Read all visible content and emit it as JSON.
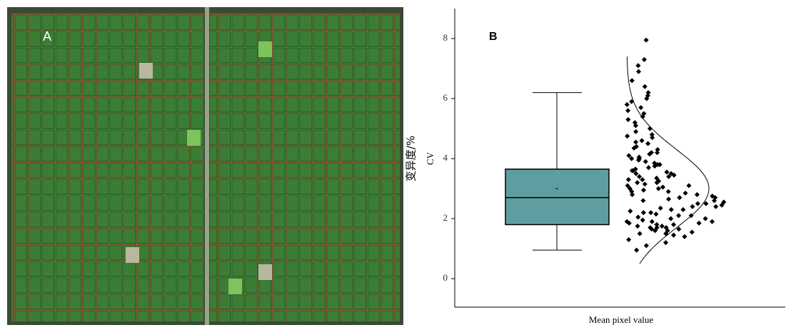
{
  "image_panel": {
    "label": "A"
  },
  "chart_data": {
    "type": "box-scatter",
    "panel_label": "B",
    "y_label": "变异度/%",
    "y_label_2": "CV",
    "x_label": "Mean pixel value",
    "ylim": [
      -0.95,
      9
    ],
    "yticks": [
      0,
      2,
      4,
      6,
      8
    ],
    "box": {
      "min": 0.95,
      "q1": 1.8,
      "median": 2.7,
      "mean": 3.0,
      "q3": 3.65,
      "max": 6.2,
      "color": "#5f9ea0"
    },
    "points": {
      "color": "#000000",
      "values": [
        7.95,
        7.3,
        7.1,
        6.9,
        6.6,
        6.4,
        6.2,
        6.1,
        6.0,
        5.9,
        5.8,
        5.7,
        5.6,
        5.5,
        5.4,
        5.3,
        5.2,
        5.1,
        5.0,
        4.9,
        4.8,
        4.75,
        4.7,
        4.6,
        4.55,
        4.5,
        4.4,
        4.35,
        4.3,
        4.2,
        4.15,
        4.1,
        4.05,
        4.0,
        3.95,
        3.9,
        3.85,
        3.8,
        3.75,
        3.7,
        3.65,
        3.6,
        3.55,
        3.5,
        3.45,
        3.4,
        3.35,
        3.3,
        3.25,
        3.2,
        3.15,
        3.1,
        3.05,
        3.0,
        2.95,
        2.9,
        2.85,
        2.8,
        2.75,
        2.7,
        2.65,
        2.6,
        2.55,
        2.5,
        2.45,
        2.4,
        2.35,
        2.3,
        2.25,
        2.2,
        2.15,
        2.1,
        2.05,
        2.0,
        1.95,
        1.9,
        1.85,
        1.8,
        1.75,
        1.7,
        1.65,
        1.6,
        1.55,
        1.5,
        1.45,
        1.4,
        1.3,
        1.2,
        1.1,
        0.95,
        3.6,
        3.3,
        3.1,
        2.9,
        2.7,
        2.5,
        2.3,
        2.1,
        1.9,
        1.8,
        1.7,
        1.6,
        1.75,
        1.85,
        1.65,
        2.0,
        2.2,
        2.4,
        2.6,
        2.8,
        3.0,
        3.2,
        3.4,
        3.5,
        3.8,
        4.0,
        4.2,
        1.5,
        1.7,
        1.9
      ]
    },
    "density": {
      "mean": 3.0,
      "sd": 1.3,
      "range": [
        0.5,
        7.4
      ]
    }
  }
}
